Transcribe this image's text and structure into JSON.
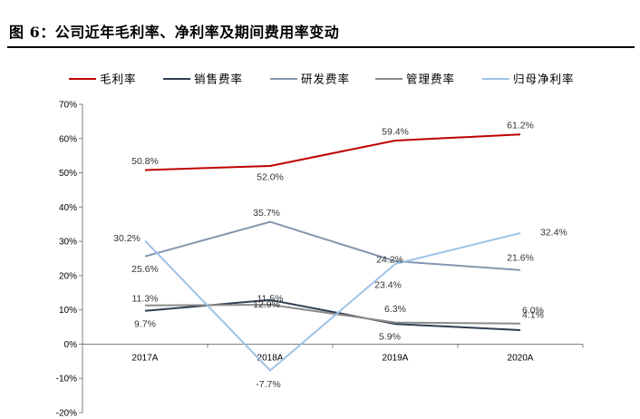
{
  "caption": "图 6：公司近年毛利率、净利率及期间费用率变动",
  "chart_data": {
    "type": "line",
    "categories": [
      "2017A",
      "2018A",
      "2019A",
      "2020A"
    ],
    "ylim": [
      -20,
      70
    ],
    "yticks": [
      "-20%",
      "-10%",
      "0%",
      "10%",
      "20%",
      "30%",
      "40%",
      "50%",
      "60%",
      "70%"
    ],
    "grid": false,
    "legend_position": "top",
    "series": [
      {
        "name": "毛利率",
        "color": "#c00000",
        "values": [
          50.8,
          52.0,
          59.4,
          61.2
        ],
        "labels": [
          "50.8%",
          "52.0%",
          "59.4%",
          "61.2%"
        ]
      },
      {
        "name": "销售费率",
        "color": "#2f3e52",
        "values": [
          9.7,
          12.9,
          5.9,
          4.1
        ],
        "labels": [
          "9.7%",
          "12.9%",
          "5.9%",
          "4.1%"
        ]
      },
      {
        "name": "研发费率",
        "color": "#8496b0",
        "values": [
          25.6,
          35.7,
          24.2,
          21.6
        ],
        "labels": [
          "25.6%",
          "35.7%",
          "24.2%",
          "21.6%"
        ]
      },
      {
        "name": "管理费率",
        "color": "#8c8c8c",
        "values": [
          11.3,
          11.5,
          6.3,
          6.0
        ],
        "labels": [
          "11.3%",
          "11.5%",
          "6.3%",
          "6.0%"
        ]
      },
      {
        "name": "归母净利率",
        "color": "#9dc3e6",
        "values": [
          30.2,
          -7.7,
          23.4,
          32.4
        ],
        "labels": [
          "30.2%",
          "-7.7%",
          "23.4%",
          "32.4%"
        ]
      }
    ]
  }
}
